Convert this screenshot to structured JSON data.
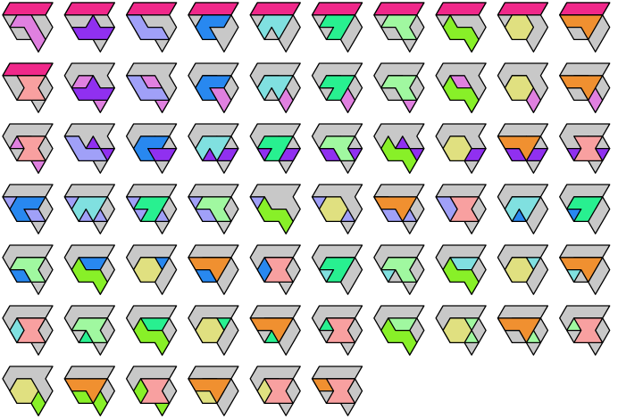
{
  "background_color": "#c8c8c8",
  "pieces": [
    {
      "id": "pink",
      "color": "#f0288a"
    },
    {
      "id": "orchid",
      "color": "#e080e0"
    },
    {
      "id": "violet",
      "color": "#9030f0"
    },
    {
      "id": "lavender",
      "color": "#a0a0f8"
    },
    {
      "id": "blue",
      "color": "#2888f0"
    },
    {
      "id": "cyan",
      "color": "#80e0e0"
    },
    {
      "id": "green",
      "color": "#28f090"
    },
    {
      "id": "lightgreen",
      "color": "#a0f8a0"
    },
    {
      "id": "lime",
      "color": "#88f028"
    },
    {
      "id": "khaki",
      "color": "#e0e080"
    },
    {
      "id": "orange",
      "color": "#f09030"
    },
    {
      "id": "salmon",
      "color": "#f8a0a0"
    }
  ],
  "tiles": [
    [
      "pink",
      "orchid"
    ],
    [
      "pink",
      "violet"
    ],
    [
      "pink",
      "lavender"
    ],
    [
      "pink",
      "blue"
    ],
    [
      "pink",
      "cyan"
    ],
    [
      "pink",
      "green"
    ],
    [
      "pink",
      "lightgreen"
    ],
    [
      "pink",
      "lime"
    ],
    [
      "pink",
      "khaki"
    ],
    [
      "pink",
      "orange"
    ],
    [
      "pink",
      "salmon"
    ],
    [
      "orchid",
      "violet"
    ],
    [
      "orchid",
      "lavender"
    ],
    [
      "orchid",
      "blue"
    ],
    [
      "orchid",
      "cyan"
    ],
    [
      "orchid",
      "green"
    ],
    [
      "orchid",
      "lightgreen"
    ],
    [
      "orchid",
      "lime"
    ],
    [
      "orchid",
      "khaki"
    ],
    [
      "orchid",
      "orange"
    ],
    [
      "orchid",
      "salmon"
    ],
    [
      "violet",
      "lavender"
    ],
    [
      "violet",
      "blue"
    ],
    [
      "violet",
      "cyan"
    ],
    [
      "violet",
      "green"
    ],
    [
      "violet",
      "lightgreen"
    ],
    [
      "violet",
      "lime"
    ],
    [
      "violet",
      "khaki"
    ],
    [
      "violet",
      "orange"
    ],
    [
      "violet",
      "salmon"
    ],
    [
      "lavender",
      "blue"
    ],
    [
      "lavender",
      "cyan"
    ],
    [
      "lavender",
      "green"
    ],
    [
      "lavender",
      "lightgreen"
    ],
    [
      "lavender",
      "lime"
    ],
    [
      "lavender",
      "khaki"
    ],
    [
      "lavender",
      "orange"
    ],
    [
      "lavender",
      "salmon"
    ],
    [
      "blue",
      "cyan"
    ],
    [
      "blue",
      "green"
    ],
    [
      "blue",
      "lightgreen"
    ],
    [
      "blue",
      "lime"
    ],
    [
      "blue",
      "khaki"
    ],
    [
      "blue",
      "orange"
    ],
    [
      "blue",
      "salmon"
    ],
    [
      "cyan",
      "green"
    ],
    [
      "cyan",
      "lightgreen"
    ],
    [
      "cyan",
      "lime"
    ],
    [
      "cyan",
      "khaki"
    ],
    [
      "cyan",
      "orange"
    ],
    [
      "cyan",
      "salmon"
    ],
    [
      "green",
      "lightgreen"
    ],
    [
      "green",
      "lime"
    ],
    [
      "green",
      "khaki"
    ],
    [
      "green",
      "orange"
    ],
    [
      "green",
      "salmon"
    ],
    [
      "lightgreen",
      "lime"
    ],
    [
      "lightgreen",
      "khaki"
    ],
    [
      "lightgreen",
      "orange"
    ],
    [
      "lightgreen",
      "salmon"
    ],
    [
      "lime",
      "khaki"
    ],
    [
      "lime",
      "orange"
    ],
    [
      "lime",
      "salmon"
    ],
    [
      "khaki",
      "orange"
    ],
    [
      "khaki",
      "salmon"
    ],
    [
      "orange",
      "salmon"
    ]
  ]
}
